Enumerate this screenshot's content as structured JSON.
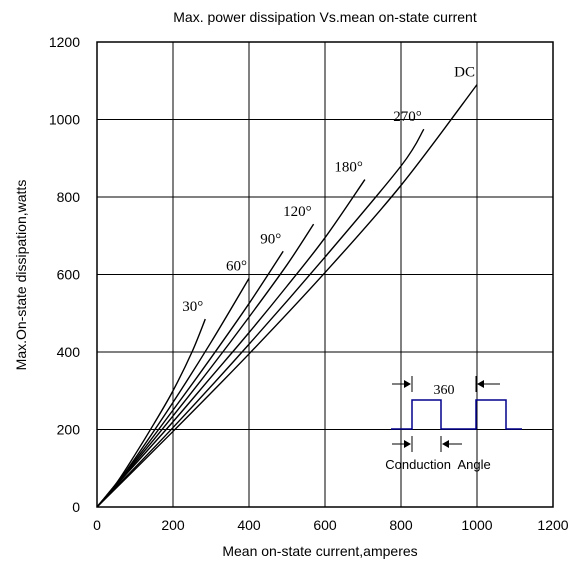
{
  "chart_data": {
    "type": "line",
    "title": "Max. power dissipation Vs.mean on-state current",
    "xlabel": "Mean on-state current,amperes",
    "ylabel": "Max.On-state dissipation,watts",
    "xlim": [
      0,
      1200
    ],
    "ylim": [
      0,
      1200
    ],
    "xticks": [
      "0",
      "200",
      "400",
      "600",
      "800",
      "1000",
      "1200"
    ],
    "yticks": [
      "0",
      "200",
      "400",
      "600",
      "800",
      "1000",
      "1200"
    ],
    "grid": true,
    "series": [
      {
        "name": "30°",
        "x": [
          0,
          50,
          100,
          150,
          200,
          250,
          285
        ],
        "y": [
          0,
          60,
          135,
          215,
          300,
          400,
          485
        ]
      },
      {
        "name": "60°",
        "x": [
          0,
          50,
          100,
          200,
          300,
          400
        ],
        "y": [
          0,
          58,
          125,
          270,
          425,
          590
        ]
      },
      {
        "name": "90°",
        "x": [
          0,
          100,
          200,
          300,
          400,
          490
        ],
        "y": [
          0,
          120,
          250,
          385,
          525,
          660
        ]
      },
      {
        "name": "120°",
        "x": [
          0,
          100,
          200,
          300,
          400,
          500,
          570
        ],
        "y": [
          0,
          115,
          235,
          360,
          490,
          625,
          730
        ]
      },
      {
        "name": "180°",
        "x": [
          0,
          100,
          200,
          300,
          400,
          500,
          600,
          705
        ],
        "y": [
          0,
          110,
          220,
          335,
          450,
          570,
          695,
          845
        ]
      },
      {
        "name": "270°",
        "x": [
          0,
          200,
          400,
          600,
          800,
          860
        ],
        "y": [
          0,
          205,
          420,
          645,
          880,
          975
        ]
      },
      {
        "name": "DC",
        "x": [
          0,
          200,
          400,
          600,
          800,
          1000
        ],
        "y": [
          0,
          195,
          395,
          605,
          830,
          1090
        ]
      }
    ],
    "inset": {
      "top_label": "360",
      "bottom_label": "Conduction  Angle",
      "waveform_color": "#00008b"
    }
  }
}
